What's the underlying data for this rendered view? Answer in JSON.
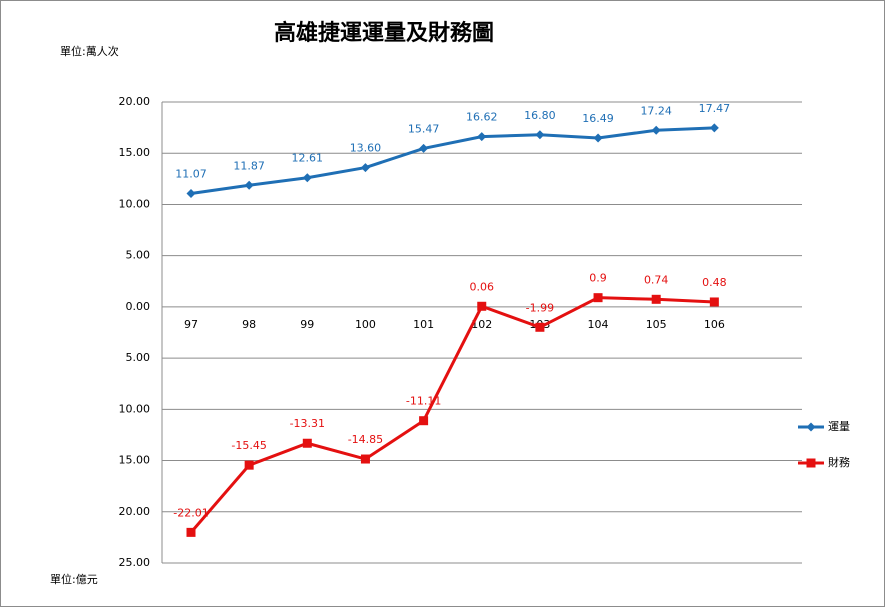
{
  "chart_data": {
    "type": "line",
    "title": "高雄捷運運量及財務圖",
    "y_unit_top": "單位:萬人次",
    "y_unit_bottom": "單位:億元",
    "categories": [
      "97",
      "98",
      "99",
      "100",
      "101",
      "102",
      "103",
      "104",
      "105",
      "106"
    ],
    "series": [
      {
        "name": "運量",
        "color": "#1f6fb5",
        "marker": "diamond",
        "values": [
          11.07,
          11.87,
          12.61,
          13.6,
          15.47,
          16.62,
          16.8,
          16.49,
          17.24,
          17.47
        ],
        "value_labels": [
          "11.07",
          "11.87",
          "12.61",
          "13.60",
          "15.47",
          "16.62",
          "16.80",
          "16.49",
          "17.24",
          "17.47"
        ]
      },
      {
        "name": "財務",
        "color": "#e41010",
        "marker": "square",
        "values": [
          -22.01,
          -15.45,
          -13.31,
          -14.85,
          -11.11,
          0.06,
          -1.99,
          0.9,
          0.74,
          0.48
        ]
      }
    ],
    "ylim": [
      -25,
      20
    ],
    "yticks": [
      {
        "value": 20,
        "label": "20.00"
      },
      {
        "value": 15,
        "label": "15.00"
      },
      {
        "value": 10,
        "label": "10.00"
      },
      {
        "value": 5,
        "label": "5.00"
      },
      {
        "value": 0,
        "label": "0.00"
      },
      {
        "value": -5,
        "label": "5.00"
      },
      {
        "value": -10,
        "label": "10.00"
      },
      {
        "value": -15,
        "label": "15.00"
      },
      {
        "value": -20,
        "label": "20.00"
      },
      {
        "value": -25,
        "label": "25.00"
      }
    ],
    "grid": true,
    "legend": "right"
  }
}
